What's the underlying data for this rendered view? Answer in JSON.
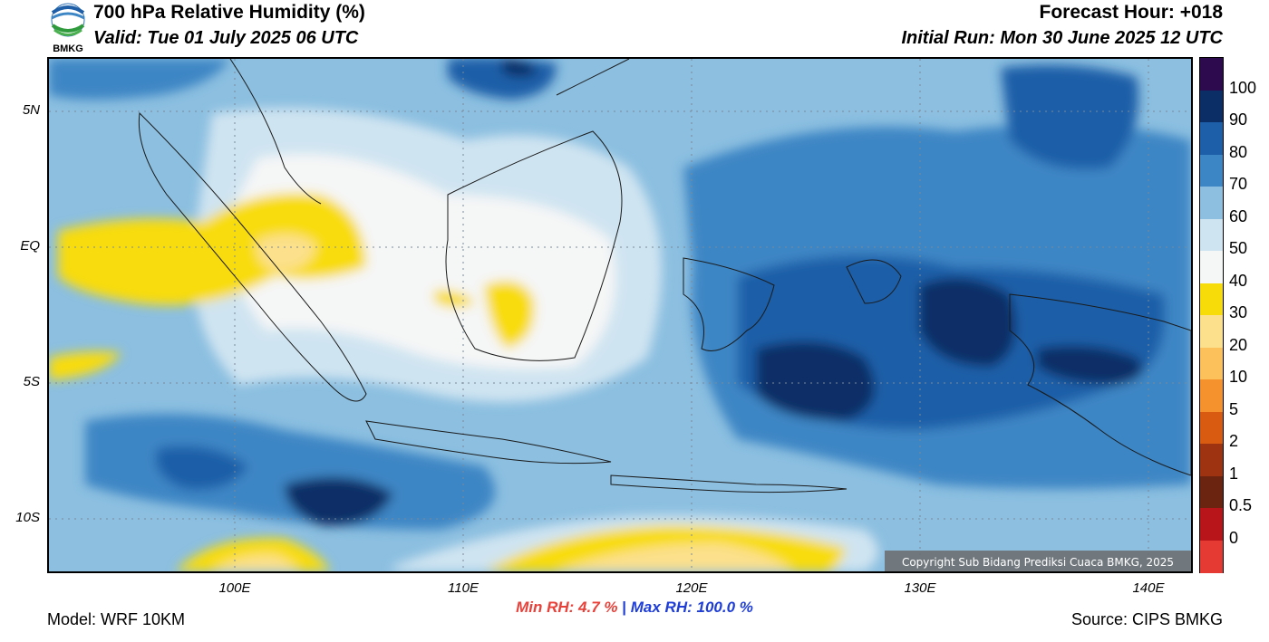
{
  "header": {
    "title": "700 hPa Relative Humidity (%)",
    "valid": "Valid: Tue 01 July 2025 06 UTC",
    "forecast_hour": "Forecast Hour: +018",
    "initial_run": "Initial Run: Mon 30 June 2025 12 UTC",
    "logo_text": "BMKG"
  },
  "map": {
    "lat_labels": [
      "5N",
      "EQ",
      "5S",
      "10S"
    ],
    "lon_labels": [
      "100E",
      "110E",
      "120E",
      "130E",
      "140E"
    ],
    "copyright": "Copyright Sub Bidang Prediksi Cuaca BMKG, 2025"
  },
  "colorbar": {
    "labels": [
      "100",
      "90",
      "80",
      "70",
      "60",
      "50",
      "40",
      "30",
      "20",
      "10",
      "5",
      "2",
      "1",
      "0.5",
      "0"
    ],
    "colors": [
      "#2d0a4e",
      "#0b2e66",
      "#1d5fa8",
      "#3d86c5",
      "#8cbfe0",
      "#cfe4f1",
      "#f5f6f6",
      "#f8dc0a",
      "#fce08c",
      "#fcc15a",
      "#f6922d",
      "#d95b12",
      "#9e3311",
      "#6b2410",
      "#b8151a",
      "#e43a33"
    ]
  },
  "stats": {
    "min_label": "Min RH:",
    "min_value": "4.7 %",
    "separator": "|",
    "max_label": "Max RH:",
    "max_value": "100.0 %",
    "min_color": "#e8413a",
    "max_color": "#1f3ed6"
  },
  "footer": {
    "model": "Model: WRF 10KM",
    "source": "Source: CIPS BMKG"
  }
}
